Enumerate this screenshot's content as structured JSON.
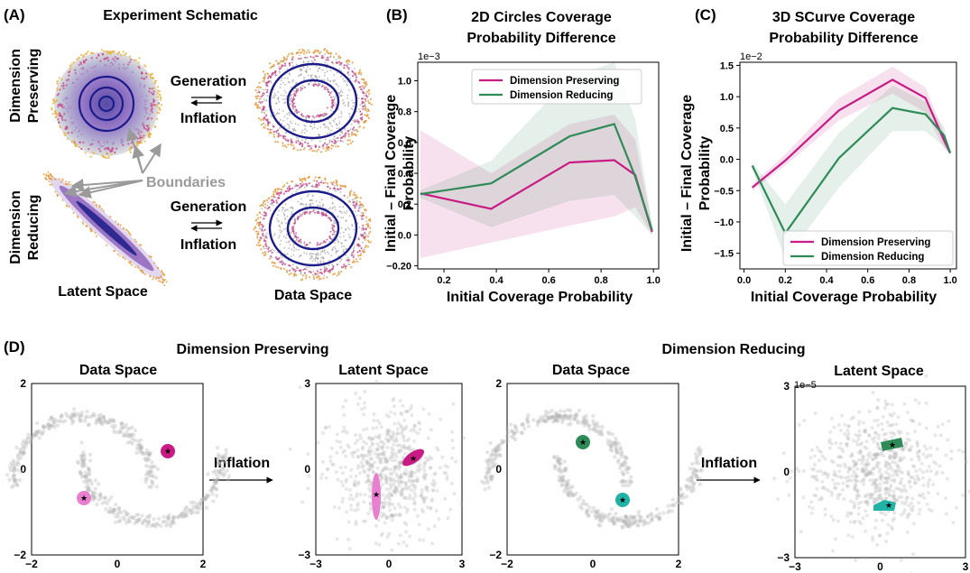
{
  "panels": {
    "A": {
      "letter": "(A)",
      "title": "Experiment Schematic",
      "row_labels": [
        [
          "Dimension",
          "Preserving"
        ],
        [
          "Dimension",
          "Reducing"
        ]
      ],
      "arrow_top": "Generation",
      "arrow_bottom": "Inflation",
      "boundaries_label": "Boundaries",
      "bottom_labels": [
        "Latent Space",
        "Data Space"
      ],
      "colors": {
        "ring_dark": "#1c1c8a",
        "ring_mid": "#8a3f9e",
        "ring_outer": "#e59a3b",
        "boundary_arrow": "#9a9a9a",
        "boundary_text": "#9a9a9a"
      }
    },
    "B": {
      "letter": "(B)",
      "title_lines": [
        "2D Circles Coverage",
        "Probability Difference"
      ],
      "exponent": "1e−3",
      "xlabel": "Initial Coverage Probability",
      "ylabel_lines": [
        "Initial – Final Coverage",
        "Probability"
      ],
      "xticks": [
        0.2,
        0.4,
        0.6,
        0.8,
        1.0
      ],
      "xtick_labels": [
        "0.2",
        "0.4",
        "0.6",
        "0.8",
        "1.0"
      ],
      "yticks": [
        -0.2,
        0.0,
        0.2,
        0.4,
        0.6,
        0.8,
        1.0
      ],
      "ytick_labels": [
        "−0.20",
        "0.0",
        "0.2",
        "0.4",
        "0.6",
        "0.8",
        "1.0"
      ],
      "legend": [
        "Dimension Preserving",
        "Dimension Reducing"
      ]
    },
    "C": {
      "letter": "(C)",
      "title_lines": [
        "3D SCurve Coverage",
        "Probability Difference"
      ],
      "exponent": "1e−2",
      "xlabel": "Initial Coverage Probability",
      "ylabel_lines": [
        "Initial – Final Coverage",
        "Probability"
      ],
      "xticks": [
        0.0,
        0.2,
        0.4,
        0.6,
        0.8,
        1.0
      ],
      "xtick_labels": [
        "0.0",
        "0.2",
        "0.4",
        "0.6",
        "0.8",
        "1.0"
      ],
      "yticks": [
        -1.5,
        -1.0,
        -0.5,
        0.0,
        0.5,
        1.0,
        1.5
      ],
      "ytick_labels": [
        "−1.5",
        "−1.0",
        "−0.5",
        "0.0",
        "0.5",
        "1.0",
        "1.5"
      ],
      "legend": [
        "Dimension Preserving",
        "Dimension Reducing"
      ]
    },
    "D": {
      "letter": "(D)",
      "group_titles": [
        "Dimension Preserving",
        "Dimension Reducing"
      ],
      "subplot_titles": [
        "Data Space",
        "Latent Space",
        "Data Space",
        "Latent Space"
      ],
      "arrow_label": "Inflation",
      "exponent_last": "1e−5",
      "ticks": [
        {
          "x": [
            "−2",
            "0",
            "2"
          ],
          "y": [
            "2",
            "0",
            "−2"
          ]
        },
        {
          "x": [
            "−3",
            "0",
            "3"
          ],
          "y": [
            "3",
            "0",
            "−3"
          ]
        },
        {
          "x": [
            "−2",
            "0",
            "2"
          ],
          "y": [
            "2",
            "0",
            "−2"
          ]
        },
        {
          "x": [
            "−3",
            "0",
            "3"
          ],
          "y": [
            "3",
            "0",
            "−3"
          ]
        }
      ]
    }
  },
  "colors": {
    "preserving": "#c81b83",
    "reducing": "#2e8b57",
    "preserving_light": "#e87fcf",
    "reducing_light": "#21b2a6",
    "scatter": "#b4b4b4"
  },
  "chart_data": [
    {
      "type": "line",
      "panel": "B",
      "xlabel": "Initial Coverage Probability",
      "ylabel": "Initial – Final Coverage Probability",
      "xlim": [
        0.1,
        1.02
      ],
      "ylim": [
        -0.22,
        1.12
      ],
      "y_scale_exponent": "1e−3",
      "legend_position": "top-left",
      "series": [
        {
          "name": "Dimension Preserving",
          "color": "#c81b83",
          "x": [
            0.11,
            0.38,
            0.68,
            0.85,
            0.93,
            0.995
          ],
          "y": [
            0.27,
            0.17,
            0.47,
            0.485,
            0.39,
            0.02
          ],
          "band_low": [
            -0.15,
            -0.05,
            0.06,
            0.12,
            0.18,
            0.0
          ],
          "band_high": [
            0.68,
            0.4,
            0.72,
            0.78,
            0.62,
            0.06
          ]
        },
        {
          "name": "Dimension Reducing",
          "color": "#2e8b57",
          "x": [
            0.11,
            0.38,
            0.68,
            0.85,
            0.93,
            0.995
          ],
          "y": [
            0.265,
            0.335,
            0.64,
            0.72,
            0.38,
            0.03
          ],
          "band_low": [
            0.24,
            0.05,
            0.22,
            0.26,
            0.12,
            0.0
          ],
          "band_high": [
            0.29,
            0.48,
            1.02,
            1.12,
            0.75,
            0.07
          ]
        }
      ]
    },
    {
      "type": "line",
      "panel": "C",
      "xlabel": "Initial Coverage Probability",
      "ylabel": "Initial – Final Coverage Probability",
      "xlim": [
        -0.02,
        1.03
      ],
      "ylim": [
        -1.75,
        1.55
      ],
      "y_scale_exponent": "1e−2",
      "legend_position": "bottom-right",
      "series": [
        {
          "name": "Dimension Preserving",
          "color": "#c81b83",
          "x": [
            0.04,
            0.2,
            0.46,
            0.72,
            0.88,
            0.97,
            1.0
          ],
          "y": [
            -0.45,
            -0.02,
            0.78,
            1.27,
            0.98,
            0.3,
            0.1
          ],
          "band_low": [
            -0.5,
            -0.1,
            0.62,
            1.05,
            0.75,
            0.18,
            0.08
          ],
          "band_high": [
            -0.4,
            0.08,
            0.98,
            1.48,
            1.15,
            0.42,
            0.12
          ]
        },
        {
          "name": "Dimension Reducing",
          "color": "#2e8b57",
          "x": [
            0.04,
            0.2,
            0.46,
            0.72,
            0.88,
            0.97,
            1.0
          ],
          "y": [
            -0.1,
            -1.18,
            0.02,
            0.82,
            0.72,
            0.38,
            0.1
          ],
          "band_low": [
            -0.15,
            -1.6,
            -0.45,
            0.45,
            0.45,
            0.2,
            0.07
          ],
          "band_high": [
            -0.05,
            -0.72,
            0.42,
            1.18,
            0.92,
            0.52,
            0.13
          ]
        }
      ]
    }
  ]
}
